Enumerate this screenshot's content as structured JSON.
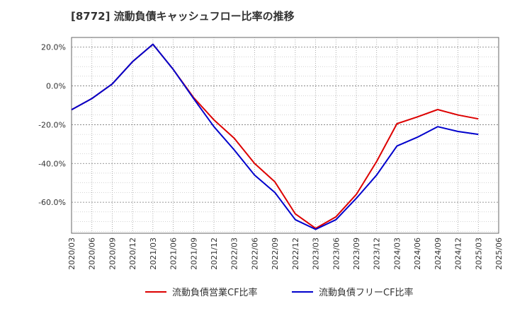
{
  "chart_data": {
    "type": "line",
    "title": "[8772]  流動負債キャッシュフロー比率の推移",
    "x": [
      "2020/03",
      "2020/06",
      "2020/09",
      "2020/12",
      "2021/03",
      "2021/06",
      "2021/09",
      "2021/12",
      "2022/03",
      "2022/06",
      "2022/09",
      "2022/12",
      "2023/03",
      "2023/06",
      "2023/09",
      "2023/12",
      "2024/03",
      "2024/06",
      "2024/09",
      "2024/12",
      "2025/03"
    ],
    "x_ticks": [
      "2020/03",
      "2020/06",
      "2020/09",
      "2020/12",
      "2021/03",
      "2021/06",
      "2021/09",
      "2021/12",
      "2022/03",
      "2022/06",
      "2022/09",
      "2022/12",
      "2023/03",
      "2023/06",
      "2023/09",
      "2023/12",
      "2024/03",
      "2024/06",
      "2024/09",
      "2024/12",
      "2025/03",
      "2025/06"
    ],
    "y_ticks": [
      20,
      0,
      -20,
      -40,
      -60
    ],
    "y_tick_labels": [
      "20.0%",
      "0.0%",
      "-20.0%",
      "-40.0%",
      "-60.0%"
    ],
    "ylim": [
      -76,
      25
    ],
    "grid": true,
    "legend_position": "bottom",
    "series": [
      {
        "name": "流動負債営業CF比率",
        "color": "#dd0000",
        "values": [
          -12.3,
          -6.5,
          1.0,
          12.5,
          21.5,
          8.5,
          -6.0,
          -17.5,
          -27.0,
          -40.0,
          -49.5,
          -66.0,
          -73.5,
          -67.5,
          -56.0,
          -39.0,
          -19.5,
          -16.0,
          -12.2,
          -15.0,
          -17.0
        ]
      },
      {
        "name": "流動負債フリーCF比率",
        "color": "#0000cc",
        "values": [
          -12.3,
          -6.5,
          1.0,
          12.5,
          21.5,
          8.5,
          -6.5,
          -21.0,
          -33.0,
          -46.0,
          -55.0,
          -69.0,
          -74.0,
          -69.0,
          -58.0,
          -46.0,
          -31.0,
          -26.5,
          -21.0,
          -23.5,
          -25.0
        ]
      }
    ]
  }
}
